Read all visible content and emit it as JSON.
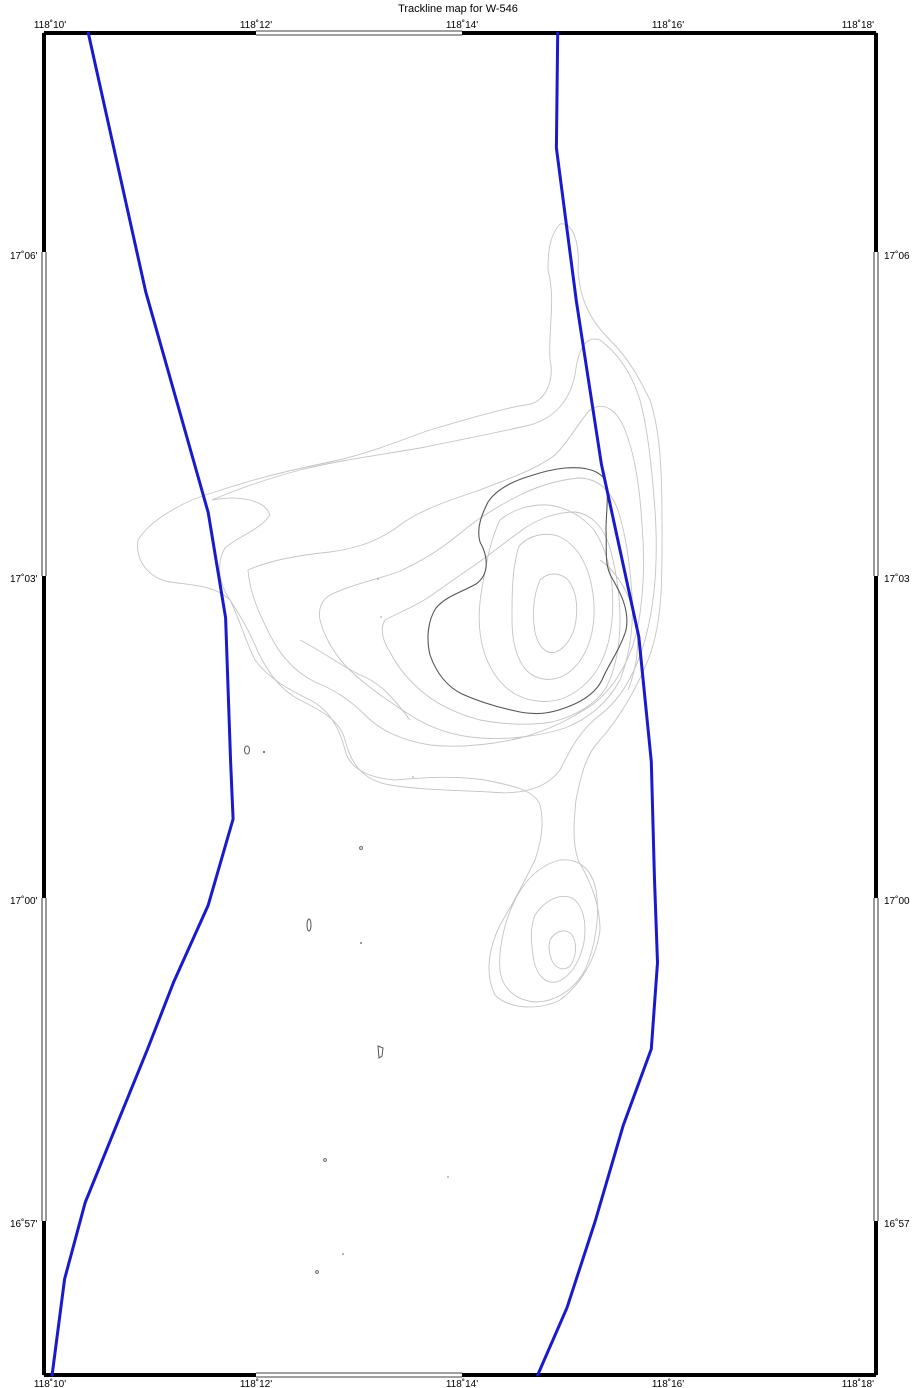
{
  "map": {
    "title": "Trackline map for W-546",
    "top_lon_labels": [
      "118˚10'",
      "118˚12'",
      "118˚14'",
      "118˚16'",
      "118˚18'"
    ],
    "bottom_lon_labels": [
      "118˚10'",
      "118˚12'",
      "118˚14'",
      "118˚16'",
      "118˚18'"
    ],
    "left_lat_labels": [
      "17˚06'",
      "17˚03'",
      "17˚00'",
      "16˚57'"
    ],
    "right_lat_labels": [
      "17˚06",
      "17˚03",
      "17˚00",
      "16˚57"
    ],
    "lon_range_deg": [
      118.1667,
      118.3
    ],
    "lat_range_deg": [
      16.9333,
      17.1667
    ],
    "track_color": "#1a1acc",
    "contour_light_color": "#c4c4c4",
    "contour_dark_color": "#555555",
    "tracklines": [
      {
        "name": "track-west",
        "points": [
          [
            118.1738,
            17.1667
          ],
          [
            118.183,
            17.1217
          ],
          [
            118.193,
            17.0833
          ],
          [
            118.1958,
            17.065
          ],
          [
            118.1966,
            17.04
          ],
          [
            118.197,
            17.03
          ],
          [
            118.193,
            17.015
          ],
          [
            118.1875,
            17.0017
          ],
          [
            118.1833,
            16.99
          ],
          [
            118.1783,
            16.9767
          ],
          [
            118.1733,
            16.9633
          ],
          [
            118.17,
            16.95
          ],
          [
            118.168,
            16.9333
          ]
        ]
      },
      {
        "name": "track-east",
        "points": [
          [
            118.249,
            17.1667
          ],
          [
            118.2488,
            17.1467
          ],
          [
            118.252,
            17.12
          ],
          [
            118.256,
            17.0917
          ],
          [
            118.262,
            17.0617
          ],
          [
            118.264,
            17.04
          ],
          [
            118.2645,
            17.02
          ],
          [
            118.265,
            17.005
          ],
          [
            118.264,
            16.99
          ],
          [
            118.2595,
            16.9767
          ],
          [
            118.255,
            16.96
          ],
          [
            118.2505,
            16.945
          ],
          [
            118.2458,
            16.9333
          ]
        ]
      }
    ]
  }
}
